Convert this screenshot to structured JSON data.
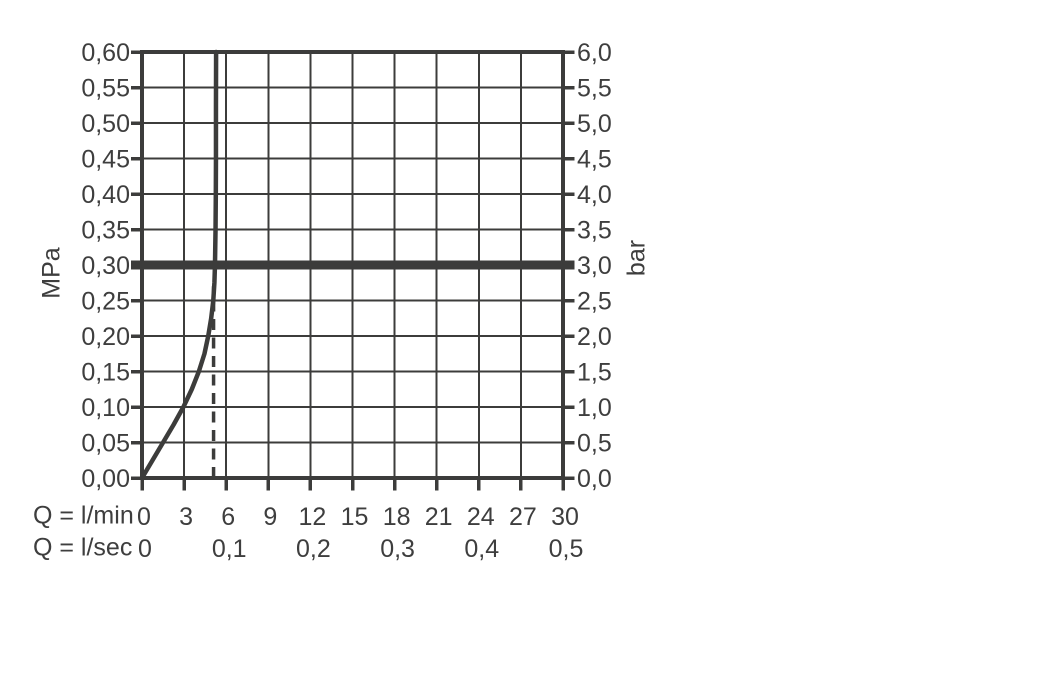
{
  "chart_data": {
    "type": "line",
    "description": "flow-rate vs pressure performance curve",
    "x_axis": {
      "row1_label": "Q = l/min",
      "row1_ticks": [
        "0",
        "3",
        "6",
        "9",
        "12",
        "15",
        "18",
        "21",
        "24",
        "27",
        "30"
      ],
      "row1_tick_values": [
        0,
        3,
        6,
        9,
        12,
        15,
        18,
        21,
        24,
        27,
        30
      ],
      "row2_label": "Q = l/sec",
      "row2_ticks": [
        "0",
        "0,1",
        "0,2",
        "0,3",
        "0,4",
        "0,5"
      ],
      "row2_tick_positions_lmin": [
        0,
        6,
        12,
        18,
        24,
        30
      ],
      "range_lmin": [
        0,
        30
      ]
    },
    "y_axis_left": {
      "unit": "MPa",
      "ticks": [
        "0,60",
        "0,55",
        "0,50",
        "0,45",
        "0,40",
        "0,35",
        "0,30",
        "0,25",
        "0,20",
        "0,15",
        "0,10",
        "0,05",
        "0,00"
      ],
      "range_mpa": [
        0,
        0.6
      ],
      "step_mpa": 0.05
    },
    "y_axis_right": {
      "unit": "bar",
      "ticks": [
        "6,0",
        "5,5",
        "5,0",
        "4,5",
        "4,0",
        "3,5",
        "3,0",
        "2,5",
        "2,0",
        "1,5",
        "1,0",
        "0,5",
        "0,0"
      ],
      "range_bar": [
        0,
        6
      ]
    },
    "series": [
      {
        "name": "flow-curve",
        "points_lmin_mpa": [
          [
            0,
            0
          ],
          [
            0.75,
            0.025
          ],
          [
            1.5,
            0.05
          ],
          [
            2.25,
            0.075
          ],
          [
            2.95,
            0.1
          ],
          [
            3.55,
            0.125
          ],
          [
            4.05,
            0.15
          ],
          [
            4.45,
            0.175
          ],
          [
            4.72,
            0.2
          ],
          [
            4.93,
            0.225
          ],
          [
            5.08,
            0.25
          ],
          [
            5.16,
            0.275
          ],
          [
            5.2,
            0.3
          ],
          [
            5.24,
            0.35
          ],
          [
            5.26,
            0.4
          ],
          [
            5.27,
            0.45
          ],
          [
            5.27,
            0.525
          ],
          [
            5.28,
            0.6
          ]
        ]
      }
    ],
    "annotations": {
      "reference_line_mpa": 0.3,
      "reference_line_bar": 3.0,
      "dashed_line_lmin": 5.1,
      "dashed_line_top_mpa": 0.27
    },
    "grid": {
      "visible": true,
      "x_step_lmin": 3,
      "y_step_mpa": 0.05
    },
    "style": {
      "line_color": "#3c3c3b",
      "text_color": "#3e3e3e",
      "background": "#ffffff"
    }
  }
}
